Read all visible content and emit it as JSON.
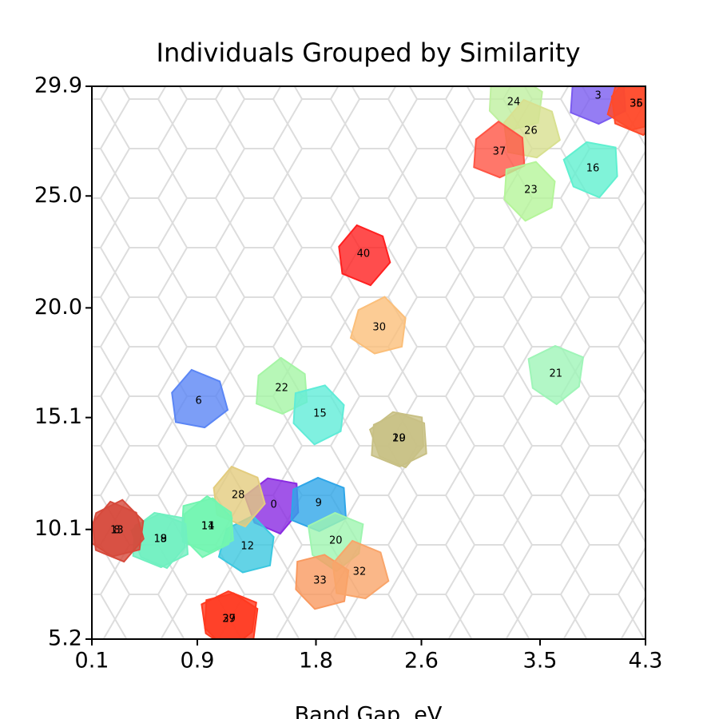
{
  "chart_data": {
    "type": "scatter",
    "title": "Individuals Grouped by Similarity",
    "x_label": "Band Gap, eV",
    "xlim": [
      0.1,
      4.3
    ],
    "ylim": [
      5.2,
      29.9
    ],
    "xticks": [
      0.1,
      0.9,
      1.8,
      2.6,
      3.5,
      4.3
    ],
    "yticks": [
      5.2,
      10.1,
      15.1,
      {
        "value": 20,
        "label": "20.0"
      },
      {
        "value": 25,
        "label": "25.0"
      },
      29.9
    ],
    "points": [
      {
        "label": "0",
        "x": 1.48,
        "y": 11.2,
        "color": "#8a2be2"
      },
      {
        "label": "9",
        "x": 1.82,
        "y": 11.27,
        "color": "#2fa6e8"
      },
      {
        "label": "12",
        "x": 1.28,
        "y": 9.34,
        "color": "#3cc8e0"
      },
      {
        "label": "28",
        "x": 1.21,
        "y": 11.62,
        "color": "#e3cc7e"
      },
      {
        "label": "20",
        "x": 1.95,
        "y": 9.59,
        "color": "#9ff5b0"
      },
      {
        "label": "33",
        "x": 1.83,
        "y": 7.81,
        "color": "#f99a60"
      },
      {
        "label": "32",
        "x": 2.13,
        "y": 8.2,
        "color": "#f9a56a"
      },
      {
        "label": "11",
        "x": 0.98,
        "y": 10.23,
        "color": "#72f5b0"
      },
      {
        "label": "14",
        "x": 0.98,
        "y": 10.23,
        "color": "#72f5b0"
      },
      {
        "label": "18",
        "x": 0.62,
        "y": 9.66,
        "color": "#70f0c0"
      },
      {
        "label": "19",
        "x": 0.62,
        "y": 9.66,
        "color": "#70f0c0"
      },
      {
        "label": "8",
        "x": 0.29,
        "y": 10.05,
        "color": "#d64a3c"
      },
      {
        "label": "13",
        "x": 0.29,
        "y": 10.05,
        "color": "#d64a3c"
      },
      {
        "label": "27",
        "x": 1.14,
        "y": 6.09,
        "color": "#ff3a20"
      },
      {
        "label": "39",
        "x": 1.14,
        "y": 6.09,
        "color": "#ff3a20"
      },
      {
        "label": "6",
        "x": 0.91,
        "y": 15.84,
        "color": "#5b86f5"
      },
      {
        "label": "22",
        "x": 1.54,
        "y": 16.41,
        "color": "#a5f5a5"
      },
      {
        "label": "15",
        "x": 1.83,
        "y": 15.27,
        "color": "#60ecd8"
      },
      {
        "label": "10",
        "x": 2.43,
        "y": 14.16,
        "color": "#c8c085"
      },
      {
        "label": "29",
        "x": 2.43,
        "y": 14.16,
        "color": "#c8c085"
      },
      {
        "label": "30",
        "x": 2.28,
        "y": 19.12,
        "color": "#fbbf7a"
      },
      {
        "label": "40",
        "x": 2.16,
        "y": 22.4,
        "color": "#ff2020"
      },
      {
        "label": "21",
        "x": 3.62,
        "y": 17.05,
        "color": "#9ff5b8"
      },
      {
        "label": "24",
        "x": 3.3,
        "y": 29.19,
        "color": "#bff0a0"
      },
      {
        "label": "26",
        "x": 3.43,
        "y": 27.9,
        "color": "#d8e090"
      },
      {
        "label": "37",
        "x": 3.19,
        "y": 26.97,
        "color": "#ff5545"
      },
      {
        "label": "23",
        "x": 3.43,
        "y": 25.26,
        "color": "#b5f59a"
      },
      {
        "label": "16",
        "x": 3.9,
        "y": 26.22,
        "color": "#60f0d0"
      },
      {
        "label": "3",
        "x": 3.94,
        "y": 29.47,
        "color": "#7b5cf0"
      },
      {
        "label": "35",
        "x": 4.23,
        "y": 29.11,
        "color": "#ff4a2a"
      },
      {
        "label": "36",
        "x": 4.23,
        "y": 29.11,
        "color": "#ff4a2a"
      }
    ]
  }
}
